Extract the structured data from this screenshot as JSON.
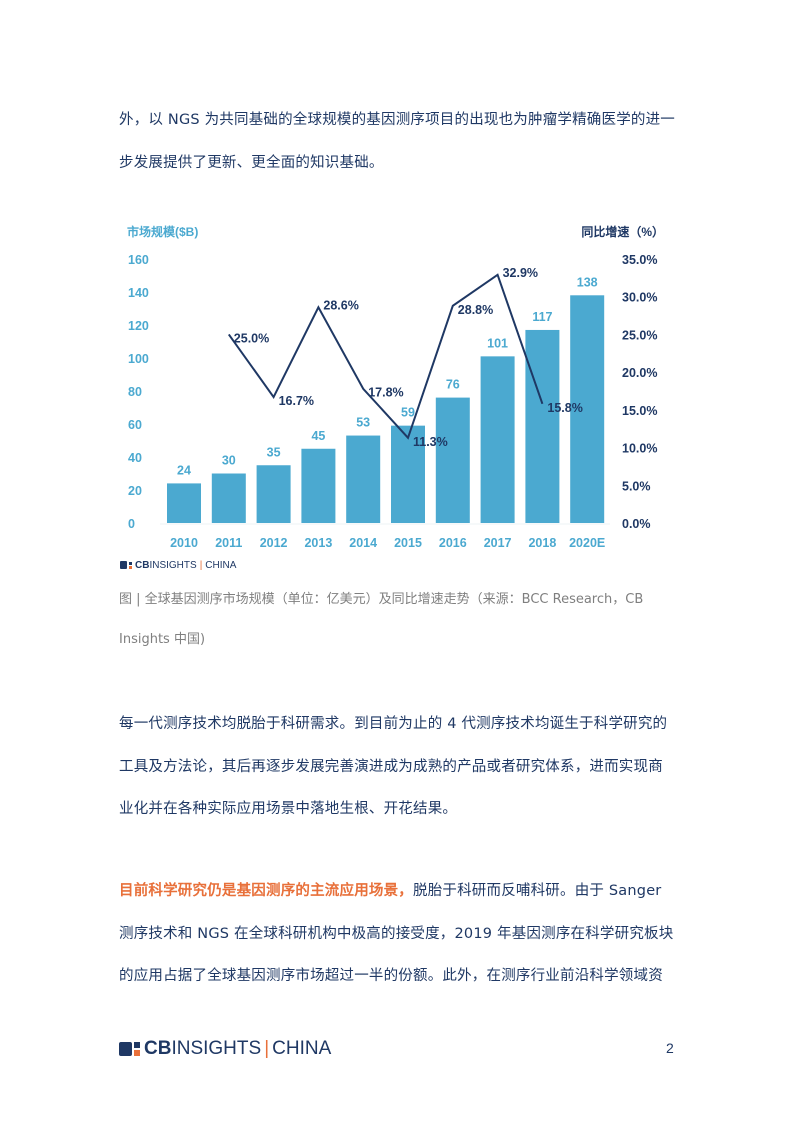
{
  "body": {
    "intro_lines": [
      "外，以 NGS 为共同基础的全球规模的基因测序项目的出现也为肿瘤学精确医学的进一",
      "步发展提供了更新、更全面的知识基础。"
    ],
    "paragraph2_lines": [
      "每一代测序技术均脱胎于科研需求。到目前为止的 4 代测序技术均诞生于科学研究的",
      "工具及方法论，其后再逐步发展完善演进成为成熟的产品或者研究体系，进而实现商",
      "业化并在各种实际应用场景中落地生根、开花结果。"
    ],
    "paragraph3": {
      "highlight": "目前科学研究仍是基因测序的主流应用场景，",
      "line1_rest": "脱胎于科研而反哺科研。由于 Sanger",
      "line2": "测序技术和 NGS 在全球科研机构中极高的接受度，2019 年基因测序在科学研究板块",
      "line3": "的应用占据了全球基因测序市场超过一半的份额。此外，在测序行业前沿科学领域资"
    }
  },
  "figure": {
    "source_logo": {
      "cb": "CB",
      "insights": "INSIGHTS",
      "sep": "|",
      "china": "CHINA"
    },
    "caption_line1": "图 | 全球基因测序市场规模（单位：亿美元）及同比增速走势（来源：BCC Research，CB",
    "caption_line2": "Insights 中国)"
  },
  "chart_data": {
    "type": "bar+line",
    "title": "",
    "left_axis_title": "市场规模($B)",
    "right_axis_title": "同比增速（%）",
    "categories": [
      "2010",
      "2011",
      "2012",
      "2013",
      "2014",
      "2015",
      "2016",
      "2017",
      "2018",
      "2020E"
    ],
    "series": [
      {
        "name": "市场规模($B)",
        "type": "bar",
        "axis": "left",
        "color": "#4ba9d0",
        "values": [
          24,
          30,
          35,
          45,
          53,
          59,
          76,
          101,
          117,
          138
        ]
      },
      {
        "name": "同比增速（%）",
        "type": "line",
        "axis": "right",
        "color": "#1f3864",
        "values": [
          null,
          25.0,
          16.7,
          28.6,
          17.8,
          11.3,
          28.8,
          32.9,
          15.8,
          null
        ],
        "labels": [
          "",
          "25.0%",
          "16.7%",
          "28.6%",
          "17.8%",
          "11.3%",
          "28.8%",
          "32.9%",
          "15.8%",
          ""
        ]
      }
    ],
    "left_ticks": [
      "0",
      "20",
      "40",
      "60",
      "80",
      "100",
      "120",
      "140",
      "160"
    ],
    "right_ticks": [
      "0.0%",
      "5.0%",
      "10.0%",
      "15.0%",
      "20.0%",
      "25.0%",
      "30.0%",
      "35.0%"
    ],
    "ylim_left": [
      0,
      160
    ],
    "ylim_right": [
      0,
      35
    ],
    "grid": false,
    "legend": "none"
  },
  "footer": {
    "logo": {
      "cb": "CB",
      "insights": "INSIGHTS",
      "sep": "|",
      "china": "CHINA"
    },
    "page_number": "2"
  },
  "colors": {
    "text": "#1f3864",
    "bar": "#4ba9d0",
    "axis_left": "#4ba9d0",
    "line": "#1f3864",
    "highlight": "#e8703a",
    "caption": "#7f7f7f"
  }
}
